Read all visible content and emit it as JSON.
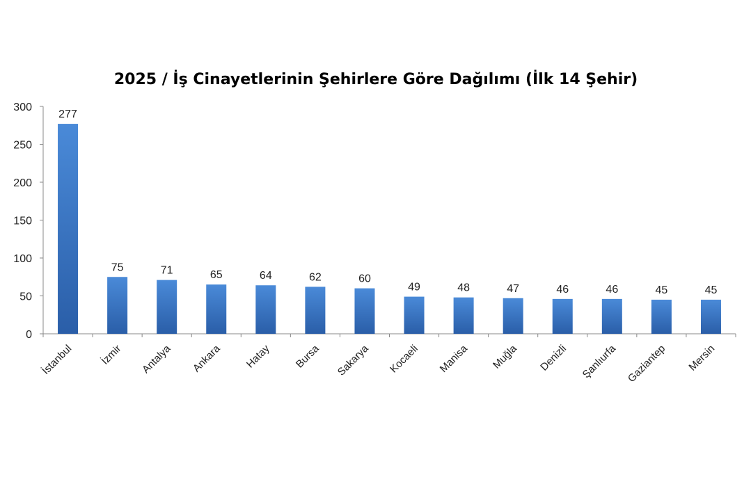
{
  "chart_data": {
    "type": "bar",
    "title": "2025 / İş Cinayetlerinin Şehirlere Göre Dağılımı (İlk 14 Şehir)",
    "xlabel": "",
    "ylabel": "",
    "ylim": [
      0,
      300
    ],
    "yticks": [
      0,
      50,
      100,
      150,
      200,
      250,
      300
    ],
    "grid": false,
    "legend": "none",
    "categories": [
      "İstanbul",
      "İzmir",
      "Antalya",
      "Ankara",
      "Hatay",
      "Bursa",
      "Sakarya",
      "Kocaeli",
      "Manisa",
      "Muğla",
      "Denizli",
      "Şanlıurfa",
      "Gaziantep",
      "Mersin"
    ],
    "values": [
      277,
      75,
      71,
      65,
      64,
      62,
      60,
      49,
      48,
      47,
      46,
      46,
      45,
      45
    ],
    "colors": {
      "bar_top": "#4a8ad8",
      "bar_bottom": "#2a5ea8",
      "axis": "#888888"
    }
  }
}
